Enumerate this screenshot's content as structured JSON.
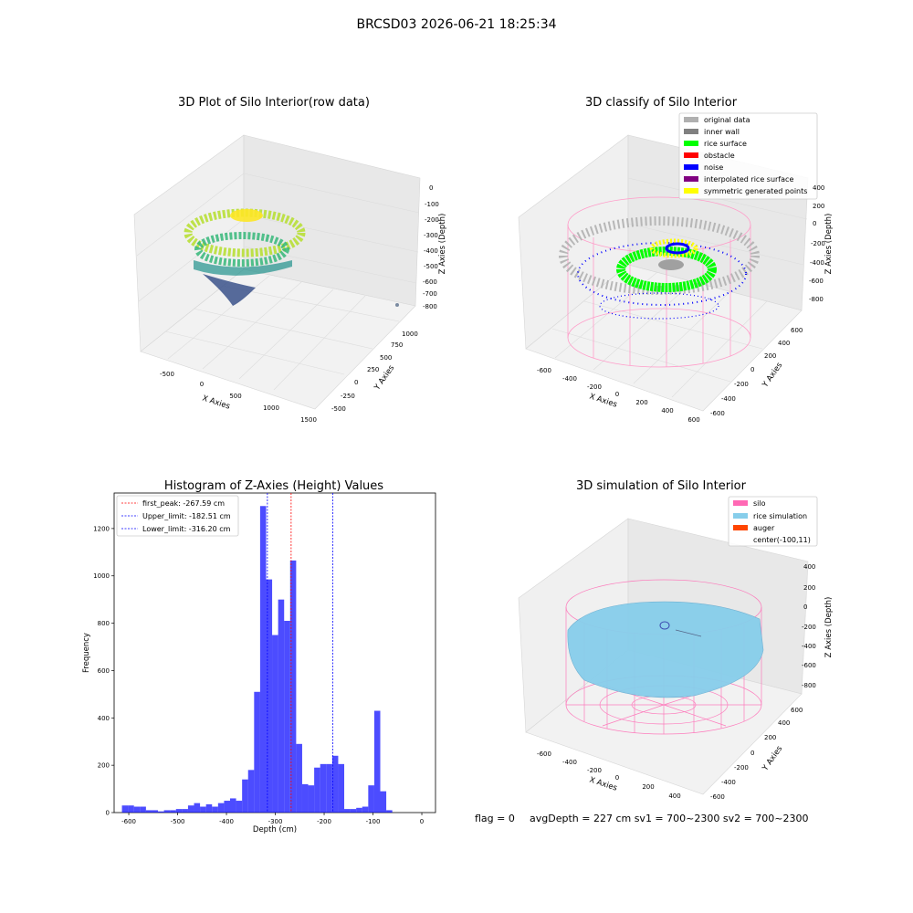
{
  "figure": {
    "suptitle": "BRCSD03 2026-06-21 18:25:34"
  },
  "panel_raw": {
    "title": "3D Plot of Silo Interior(row data)",
    "xlabel": "X Axies",
    "ylabel": "Y Axies",
    "zlabel": "Z Axies (Depth)",
    "x_ticks": [
      "-500",
      "0",
      "500",
      "1000",
      "1500"
    ],
    "y_ticks": [
      "-500",
      "-250",
      "0",
      "250",
      "500",
      "750",
      "1000"
    ],
    "z_ticks": [
      "0",
      "-100",
      "-200",
      "-300",
      "-400",
      "-500",
      "-600",
      "-700",
      "-800"
    ],
    "colormap": "viridis"
  },
  "panel_classify": {
    "title": "3D classify of Silo Interior",
    "xlabel": "X Axies",
    "ylabel": "Y Axies",
    "zlabel": "Z Axies (Depth)",
    "x_ticks": [
      "-600",
      "-400",
      "-200",
      "0",
      "200",
      "400",
      "600"
    ],
    "y_ticks": [
      "-600",
      "-400",
      "-200",
      "0",
      "200",
      "400",
      "600"
    ],
    "z_ticks": [
      "400",
      "200",
      "0",
      "-200",
      "-400",
      "-600",
      "-800"
    ],
    "legend": [
      {
        "label": "original data",
        "color": "#b0b0b0"
      },
      {
        "label": "inner wall",
        "color": "#808080"
      },
      {
        "label": "rice surface",
        "color": "#00ff00"
      },
      {
        "label": "obstacle",
        "color": "#ff0000"
      },
      {
        "label": "noise",
        "color": "#0000ff"
      },
      {
        "label": "interpolated rice surface",
        "color": "#800080"
      },
      {
        "label": "symmetric generated points",
        "color": "#ffff00"
      }
    ]
  },
  "panel_sim": {
    "title": "3D simulation of Silo Interior",
    "xlabel": "X Axies",
    "ylabel": "Y Axies",
    "zlabel": "Z Axies (Depth)",
    "x_ticks": [
      "-600",
      "-400",
      "-200",
      "0",
      "200",
      "400"
    ],
    "y_ticks": [
      "-600",
      "-400",
      "-200",
      "0",
      "200",
      "400",
      "600"
    ],
    "z_ticks": [
      "400",
      "200",
      "0",
      "-200",
      "-400",
      "-600",
      "-800"
    ],
    "legend": [
      {
        "label": "silo",
        "color": "#ff69b4"
      },
      {
        "label": "rice simulation",
        "color": "#87ceeb"
      },
      {
        "label": "auger",
        "color": "#ff4500"
      },
      {
        "label": "center(-100,11)",
        "color": ""
      }
    ]
  },
  "footer": {
    "flag": "flag = 0",
    "avg": "avgDepth = 227 cm  sv1 = 700~2300  sv2 = 700~2300"
  },
  "chart_data": [
    {
      "type": "bar",
      "title": "Histogram of Z-Axies (Height) Values",
      "xlabel": "Depth (cm)",
      "ylabel": "Frequency",
      "xlim": [
        -630,
        28
      ],
      "ylim": [
        0,
        1350
      ],
      "x_ticks": [
        -600,
        -500,
        -400,
        -300,
        -200,
        -100,
        0
      ],
      "y_ticks": [
        0,
        200,
        400,
        600,
        800,
        1000,
        1200
      ],
      "bar_color": "#0000ff",
      "bin_width": 12.3,
      "bin_edges_start": -614,
      "values": [
        30,
        30,
        25,
        25,
        10,
        10,
        5,
        10,
        10,
        15,
        15,
        30,
        40,
        25,
        35,
        25,
        40,
        50,
        60,
        50,
        140,
        180,
        510,
        1295,
        985,
        750,
        900,
        810,
        1065,
        290,
        120,
        115,
        190,
        205,
        205,
        240,
        205,
        15,
        15,
        20,
        25,
        115,
        430,
        90,
        10
      ],
      "lines": [
        {
          "label": "first_peak: -267.59 cm",
          "x": -267.59,
          "color": "#ff0000"
        },
        {
          "label": "Upper_limit: -182.51 cm",
          "x": -182.51,
          "color": "#0000ff"
        },
        {
          "label": "Lower_limit: -316.20 cm",
          "x": -316.2,
          "color": "#0000ff"
        }
      ],
      "legend_position": "top-left"
    }
  ]
}
